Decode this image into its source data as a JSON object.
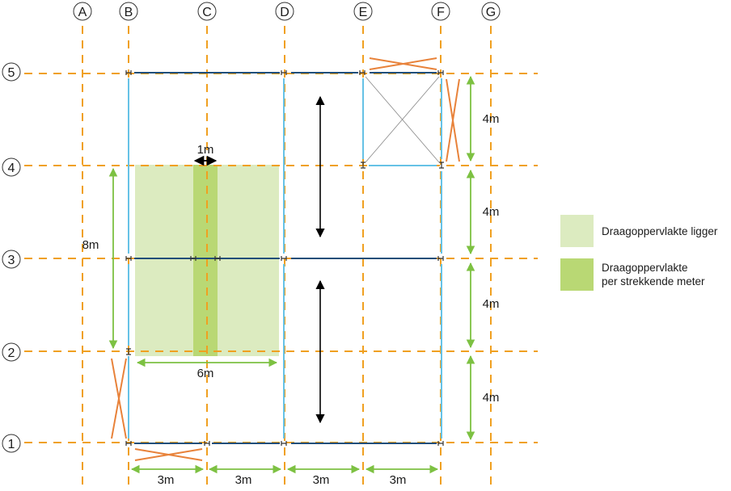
{
  "colors": {
    "grid_line": "#f0a020",
    "beam_dark": "#1f4e79",
    "beam_light": "#66c2e6",
    "bracing": "#e8823a",
    "dimension": "#7dc142",
    "area_light": "#dcebc0",
    "area_dark": "#b9d874",
    "arrow": "#000000",
    "thin": "#888888"
  },
  "grid": {
    "columns": [
      "A",
      "B",
      "C",
      "D",
      "E",
      "F",
      "G"
    ],
    "rows": [
      "5",
      "4",
      "3",
      "2",
      "1"
    ]
  },
  "dimensions": {
    "bottom": [
      "3m",
      "3m",
      "3m",
      "3m"
    ],
    "right": [
      "4m",
      "4m",
      "4m",
      "4m"
    ],
    "span_left": "8m",
    "area_width": "6m",
    "strip_width": "1m"
  },
  "legend": [
    {
      "label": "Draagoppervlakte ligger",
      "color": "#dcebc0"
    },
    {
      "label": "Draagoppervlakte\nper strekkende meter",
      "color": "#b9d874"
    }
  ]
}
